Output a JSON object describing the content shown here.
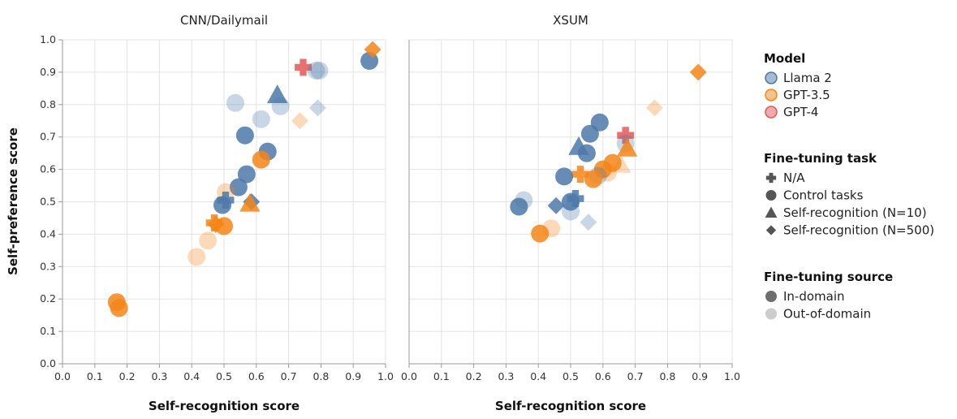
{
  "chart_data": {
    "type": "scatter",
    "ylabel": "Self-preference score",
    "xlabel": "Self-recognition score",
    "xlim": [
      0,
      1
    ],
    "ylim": [
      0,
      1
    ],
    "x_ticks": [
      "0.0",
      "0.1",
      "0.2",
      "0.3",
      "0.4",
      "0.5",
      "0.6",
      "0.7",
      "0.8",
      "0.9",
      "1.0"
    ],
    "y_ticks": [
      "0.0",
      "0.1",
      "0.2",
      "0.3",
      "0.4",
      "0.5",
      "0.6",
      "0.7",
      "0.8",
      "0.9",
      "1.0"
    ],
    "grid": true,
    "colors": {
      "Llama 2": "#4c78a8",
      "GPT-3.5": "#f58518",
      "GPT-4": "#e45756"
    },
    "opacity": {
      "In-domain": 0.85,
      "Out-of-domain": 0.3
    },
    "legend": {
      "placement": "right",
      "model": {
        "title": "Model",
        "items": [
          "Llama 2",
          "GPT-3.5",
          "GPT-4"
        ]
      },
      "task": {
        "title": "Fine-tuning task",
        "items": [
          {
            "label": "N/A",
            "shape": "cross"
          },
          {
            "label": "Control tasks",
            "shape": "circle"
          },
          {
            "label": "Self-recognition (N=10)",
            "shape": "triangle"
          },
          {
            "label": "Self-recognition (N=500)",
            "shape": "diamond"
          }
        ]
      },
      "source": {
        "title": "Fine-tuning source",
        "items": [
          "In-domain",
          "Out-of-domain"
        ]
      }
    },
    "panels": [
      {
        "title": "CNN/Dailymail",
        "points": [
          {
            "x": 0.95,
            "y": 0.935,
            "model": "Llama 2",
            "task": "circle",
            "source": "In-domain"
          },
          {
            "x": 0.96,
            "y": 0.97,
            "model": "GPT-3.5",
            "task": "diamond",
            "source": "In-domain"
          },
          {
            "x": 0.745,
            "y": 0.915,
            "model": "GPT-4",
            "task": "cross",
            "source": "In-domain"
          },
          {
            "x": 0.785,
            "y": 0.905,
            "model": "Llama 2",
            "task": "circle",
            "source": "Out-of-domain"
          },
          {
            "x": 0.795,
            "y": 0.905,
            "model": "Llama 2",
            "task": "circle",
            "source": "Out-of-domain"
          },
          {
            "x": 0.665,
            "y": 0.83,
            "model": "Llama 2",
            "task": "triangle",
            "source": "In-domain"
          },
          {
            "x": 0.675,
            "y": 0.795,
            "model": "Llama 2",
            "task": "circle",
            "source": "Out-of-domain"
          },
          {
            "x": 0.79,
            "y": 0.79,
            "model": "Llama 2",
            "task": "diamond",
            "source": "Out-of-domain"
          },
          {
            "x": 0.535,
            "y": 0.805,
            "model": "Llama 2",
            "task": "circle",
            "source": "Out-of-domain"
          },
          {
            "x": 0.735,
            "y": 0.75,
            "model": "GPT-3.5",
            "task": "diamond",
            "source": "Out-of-domain"
          },
          {
            "x": 0.615,
            "y": 0.755,
            "model": "Llama 2",
            "task": "circle",
            "source": "Out-of-domain"
          },
          {
            "x": 0.565,
            "y": 0.705,
            "model": "Llama 2",
            "task": "circle",
            "source": "In-domain"
          },
          {
            "x": 0.635,
            "y": 0.655,
            "model": "Llama 2",
            "task": "circle",
            "source": "In-domain"
          },
          {
            "x": 0.615,
            "y": 0.63,
            "model": "GPT-3.5",
            "task": "circle",
            "source": "In-domain"
          },
          {
            "x": 0.57,
            "y": 0.585,
            "model": "Llama 2",
            "task": "circle",
            "source": "In-domain"
          },
          {
            "x": 0.545,
            "y": 0.545,
            "model": "Llama 2",
            "task": "circle",
            "source": "In-domain"
          },
          {
            "x": 0.505,
            "y": 0.53,
            "model": "GPT-3.5",
            "task": "circle",
            "source": "Out-of-domain"
          },
          {
            "x": 0.505,
            "y": 0.505,
            "model": "Llama 2",
            "task": "cross",
            "source": "In-domain"
          },
          {
            "x": 0.495,
            "y": 0.49,
            "model": "Llama 2",
            "task": "circle",
            "source": "In-domain"
          },
          {
            "x": 0.585,
            "y": 0.5,
            "model": "Llama 2",
            "task": "diamond",
            "source": "In-domain"
          },
          {
            "x": 0.58,
            "y": 0.495,
            "model": "GPT-3.5",
            "task": "triangle",
            "source": "In-domain"
          },
          {
            "x": 0.47,
            "y": 0.435,
            "model": "GPT-3.5",
            "task": "cross",
            "source": "In-domain"
          },
          {
            "x": 0.475,
            "y": 0.43,
            "model": "GPT-3.5",
            "task": "diamond",
            "source": "In-domain"
          },
          {
            "x": 0.5,
            "y": 0.425,
            "model": "GPT-3.5",
            "task": "circle",
            "source": "In-domain"
          },
          {
            "x": 0.45,
            "y": 0.38,
            "model": "GPT-3.5",
            "task": "circle",
            "source": "Out-of-domain"
          },
          {
            "x": 0.415,
            "y": 0.33,
            "model": "GPT-3.5",
            "task": "circle",
            "source": "Out-of-domain"
          },
          {
            "x": 0.168,
            "y": 0.19,
            "model": "GPT-3.5",
            "task": "circle",
            "source": "In-domain"
          },
          {
            "x": 0.175,
            "y": 0.172,
            "model": "GPT-3.5",
            "task": "circle",
            "source": "In-domain"
          }
        ]
      },
      {
        "title": "XSUM",
        "points": [
          {
            "x": 0.895,
            "y": 0.9,
            "model": "GPT-3.5",
            "task": "diamond",
            "source": "In-domain"
          },
          {
            "x": 0.76,
            "y": 0.79,
            "model": "GPT-3.5",
            "task": "diamond",
            "source": "Out-of-domain"
          },
          {
            "x": 0.59,
            "y": 0.745,
            "model": "Llama 2",
            "task": "circle",
            "source": "In-domain"
          },
          {
            "x": 0.56,
            "y": 0.71,
            "model": "Llama 2",
            "task": "circle",
            "source": "In-domain"
          },
          {
            "x": 0.67,
            "y": 0.705,
            "model": "GPT-4",
            "task": "cross",
            "source": "In-domain"
          },
          {
            "x": 0.67,
            "y": 0.68,
            "model": "Llama 2",
            "task": "circle",
            "source": "Out-of-domain"
          },
          {
            "x": 0.525,
            "y": 0.67,
            "model": "Llama 2",
            "task": "triangle",
            "source": "In-domain"
          },
          {
            "x": 0.675,
            "y": 0.665,
            "model": "GPT-3.5",
            "task": "triangle",
            "source": "In-domain"
          },
          {
            "x": 0.55,
            "y": 0.65,
            "model": "Llama 2",
            "task": "circle",
            "source": "In-domain"
          },
          {
            "x": 0.63,
            "y": 0.62,
            "model": "GPT-3.5",
            "task": "circle",
            "source": "In-domain"
          },
          {
            "x": 0.655,
            "y": 0.615,
            "model": "GPT-3.5",
            "task": "triangle",
            "source": "Out-of-domain"
          },
          {
            "x": 0.6,
            "y": 0.6,
            "model": "GPT-3.5",
            "task": "circle",
            "source": "In-domain"
          },
          {
            "x": 0.615,
            "y": 0.59,
            "model": "GPT-3.5",
            "task": "circle",
            "source": "Out-of-domain"
          },
          {
            "x": 0.53,
            "y": 0.585,
            "model": "GPT-3.5",
            "task": "cross",
            "source": "In-domain"
          },
          {
            "x": 0.585,
            "y": 0.58,
            "model": "Llama 2",
            "task": "circle",
            "source": "Out-of-domain"
          },
          {
            "x": 0.48,
            "y": 0.578,
            "model": "Llama 2",
            "task": "circle",
            "source": "In-domain"
          },
          {
            "x": 0.57,
            "y": 0.57,
            "model": "GPT-3.5",
            "task": "circle",
            "source": "In-domain"
          },
          {
            "x": 0.515,
            "y": 0.51,
            "model": "Llama 2",
            "task": "cross",
            "source": "In-domain"
          },
          {
            "x": 0.355,
            "y": 0.505,
            "model": "Llama 2",
            "task": "circle",
            "source": "Out-of-domain"
          },
          {
            "x": 0.5,
            "y": 0.5,
            "model": "Llama 2",
            "task": "circle",
            "source": "In-domain"
          },
          {
            "x": 0.455,
            "y": 0.488,
            "model": "Llama 2",
            "task": "diamond",
            "source": "In-domain"
          },
          {
            "x": 0.34,
            "y": 0.485,
            "model": "Llama 2",
            "task": "circle",
            "source": "In-domain"
          },
          {
            "x": 0.5,
            "y": 0.47,
            "model": "Llama 2",
            "task": "circle",
            "source": "Out-of-domain"
          },
          {
            "x": 0.555,
            "y": 0.437,
            "model": "Llama 2",
            "task": "diamond",
            "source": "Out-of-domain"
          },
          {
            "x": 0.44,
            "y": 0.418,
            "model": "GPT-3.5",
            "task": "circle",
            "source": "Out-of-domain"
          },
          {
            "x": 0.405,
            "y": 0.402,
            "model": "GPT-3.5",
            "task": "circle",
            "source": "In-domain"
          }
        ]
      }
    ]
  }
}
